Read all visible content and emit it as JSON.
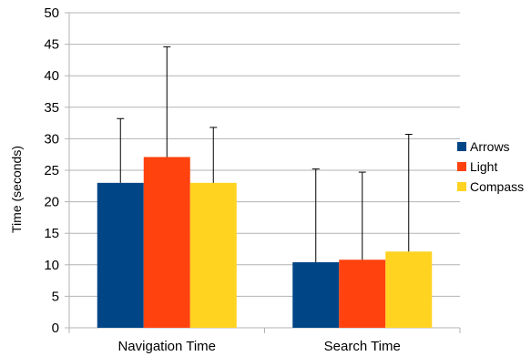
{
  "chart_data": {
    "type": "bar",
    "title": "",
    "xlabel": "",
    "ylabel": "Time (seconds)",
    "ylim": [
      0,
      50
    ],
    "yticks": [
      0,
      5,
      10,
      15,
      20,
      25,
      30,
      35,
      40,
      45,
      50
    ],
    "grid": true,
    "legend_position": "right",
    "categories": [
      "Navigation Time",
      "Search Time"
    ],
    "series": [
      {
        "name": "Arrows",
        "color": "#004586",
        "values": [
          23.0,
          10.4
        ],
        "error": [
          10.2,
          14.8
        ]
      },
      {
        "name": "Light",
        "color": "#ff420e",
        "values": [
          27.1,
          10.8
        ],
        "error": [
          17.5,
          13.9
        ]
      },
      {
        "name": "Compass",
        "color": "#ffd320",
        "values": [
          23.0,
          12.1
        ],
        "error": [
          8.8,
          18.6
        ]
      }
    ]
  }
}
